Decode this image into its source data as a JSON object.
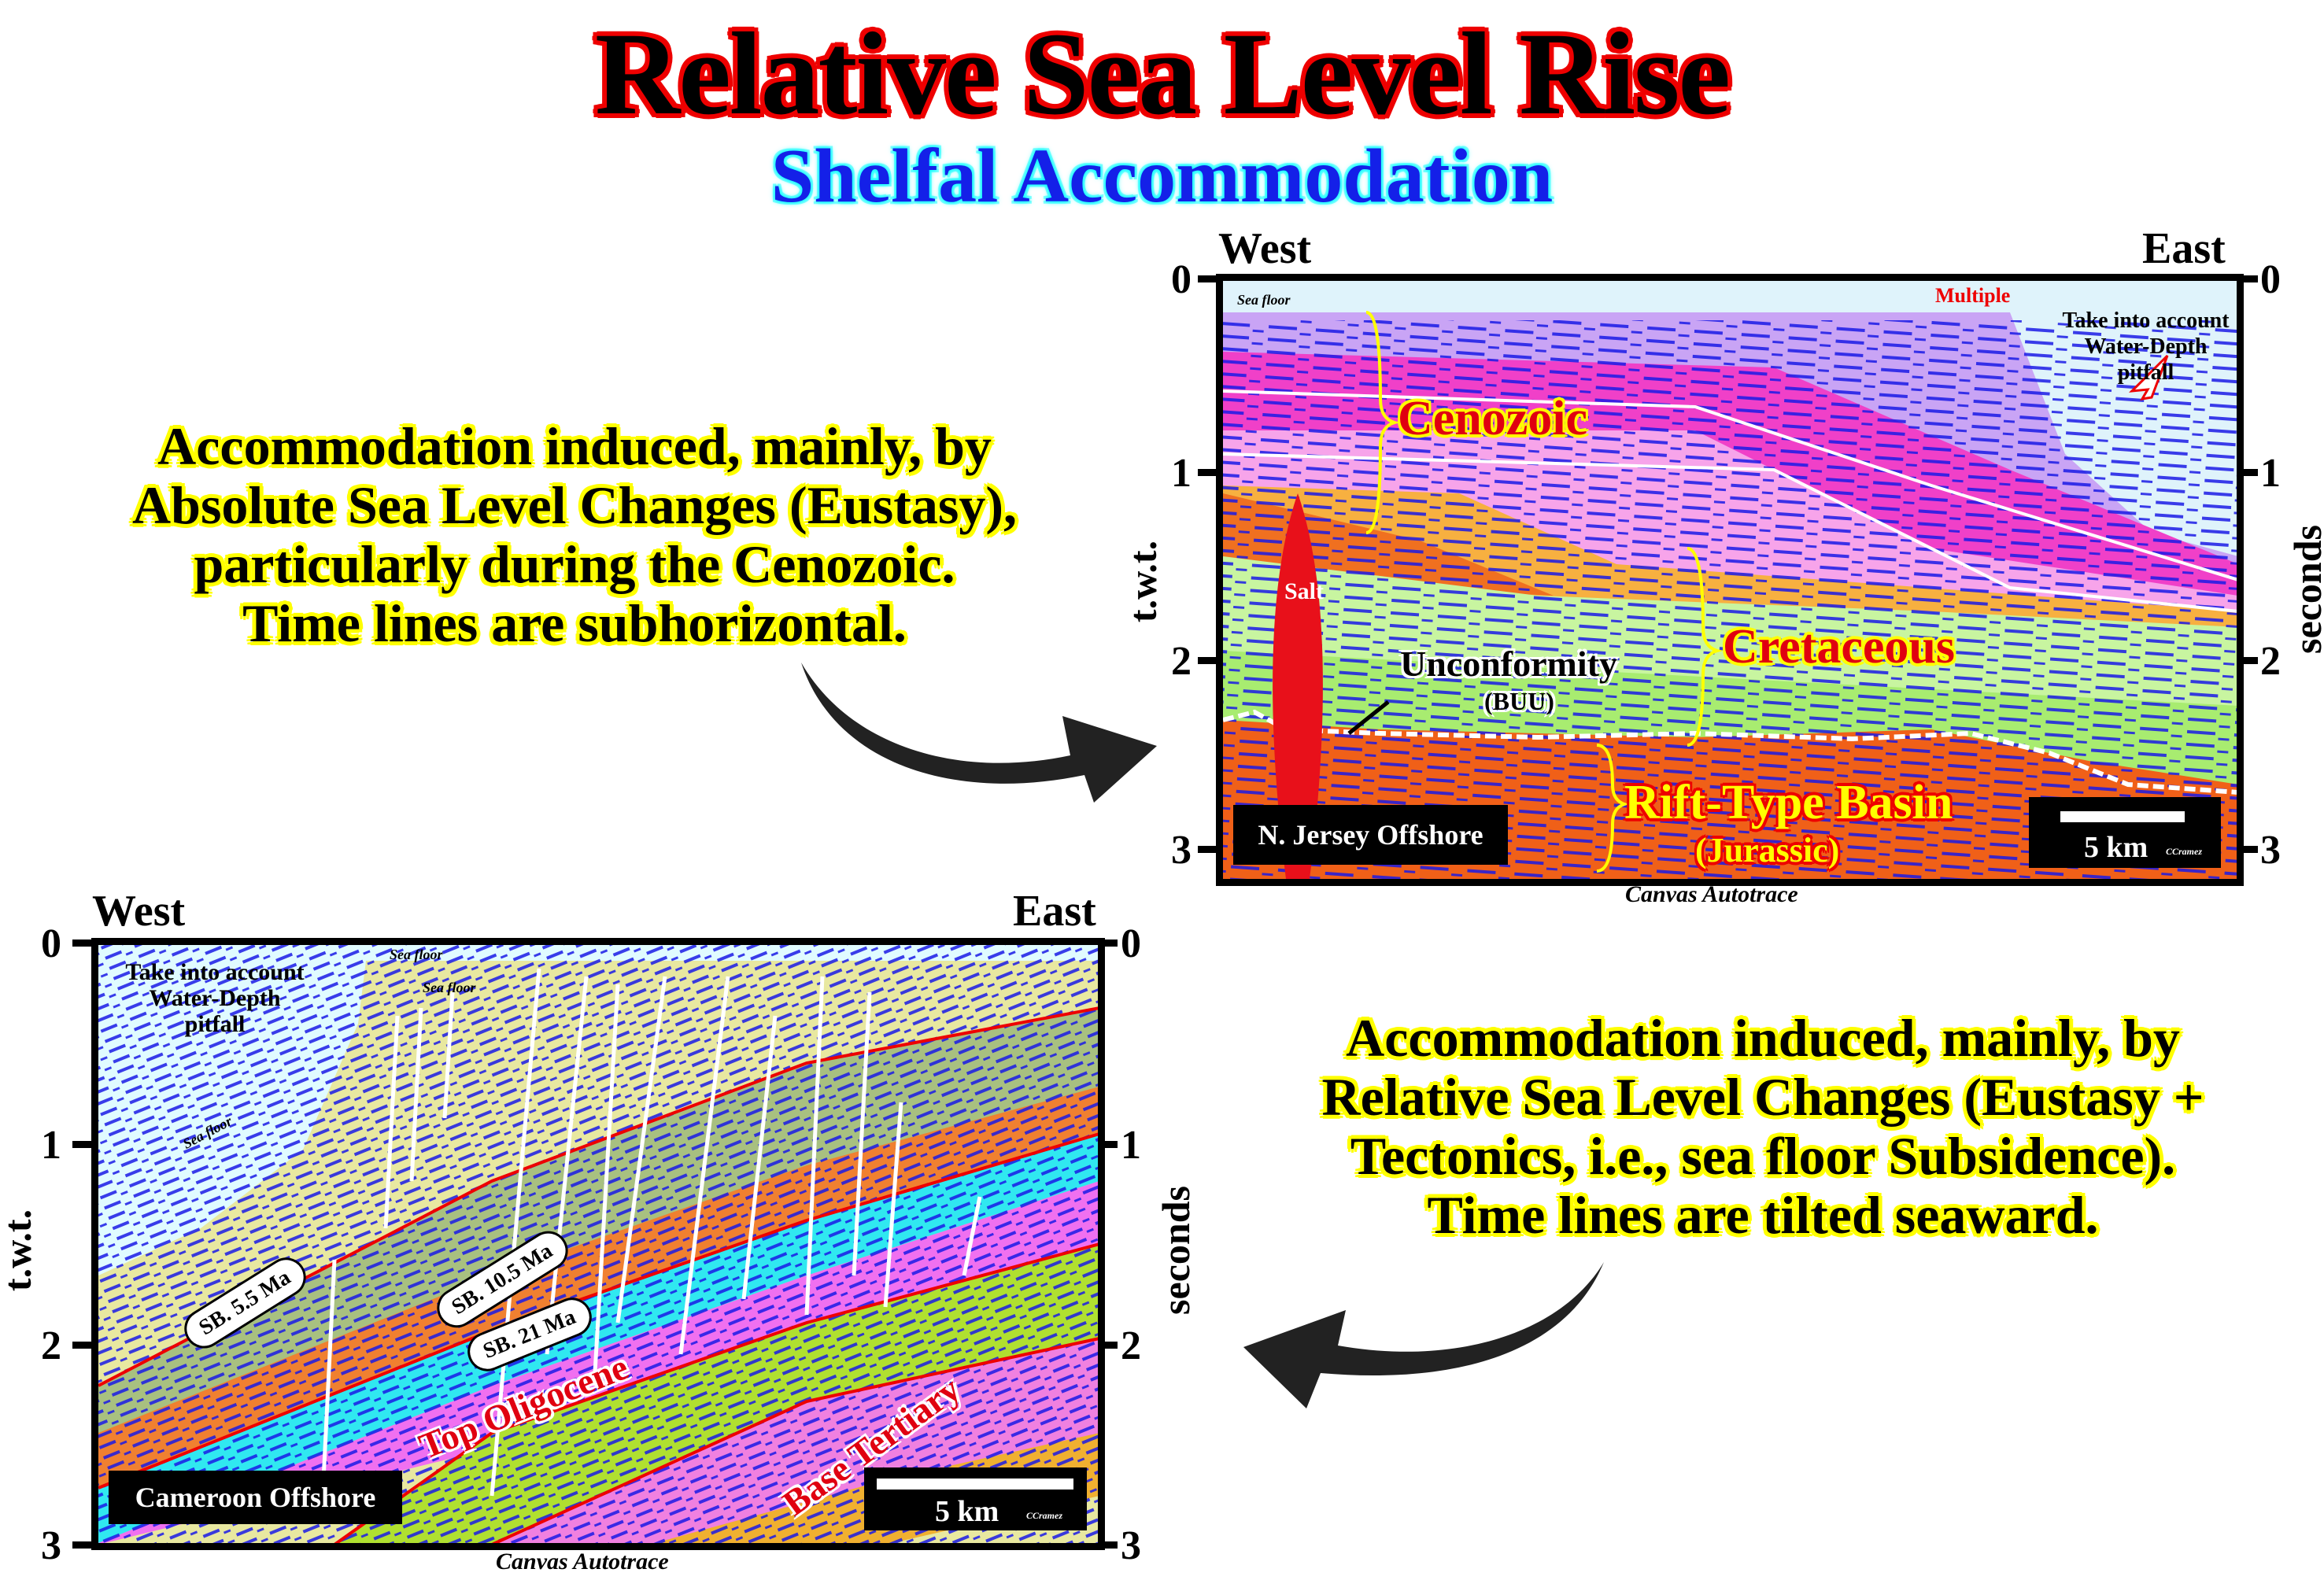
{
  "title": "Relative Sea Level Rise",
  "subtitle": "Shelfal Accommodation",
  "left_note": {
    "lines": [
      "Accommodation induced, mainly, by",
      "Absolute Sea Level Changes (Eustasy),",
      "particularly during the Cenozoic.",
      "Time lines are subhorizontal."
    ]
  },
  "right_note": {
    "lines": [
      "Accommodation induced, mainly, by",
      "Relative Sea Level Changes (Eustasy +",
      "Tectonics, i.e., sea floor Subsidence).",
      "Time lines are tilted seaward."
    ]
  },
  "top_section": {
    "west": "West",
    "east": "East",
    "y_ticks": [
      "0",
      "1",
      "2",
      "3"
    ],
    "left_axis": "t.w.t.",
    "right_axis": "seconds",
    "sea_floor": "Sea floor",
    "multiple": "Multiple",
    "pitfall": [
      "Take into account",
      "Water-Depth",
      "pitfall"
    ],
    "cenozoic": "Cenozoic",
    "salt": "Salt",
    "unconformity": "Unconformity",
    "buu": "(BUU)",
    "cretaceous": "Cretaceous",
    "rift": "Rift-Type Basin",
    "jurassic": "(Jurassic)",
    "location": "N. Jersey Offshore",
    "scale": "5 km",
    "author": "CCramez",
    "credit": "Canvas Autotrace"
  },
  "bottom_section": {
    "west": "West",
    "east": "East",
    "y_ticks": [
      "0",
      "1",
      "2",
      "3"
    ],
    "left_axis": "t.w.t.",
    "right_axis": "seconds",
    "sea_floor": "Sea floor",
    "pitfall": [
      "Take into account",
      "Water-Depth",
      "pitfall"
    ],
    "sb1": "SB. 5.5 Ma",
    "sb2": "SB. 10.5 Ma",
    "sb3": "SB. 21 Ma",
    "top_oligocene": "Top Oligocene",
    "base_tertiary": "Base Tertiary",
    "location": "Cameroon Offshore",
    "scale": "5 km",
    "author": "CCramez",
    "credit": "Canvas Autotrace"
  },
  "colors": {
    "title_outline": "#e00000",
    "subtitle": "#1420e8",
    "note_outline": "#ffff00",
    "reflector": "#1a1ae6"
  }
}
